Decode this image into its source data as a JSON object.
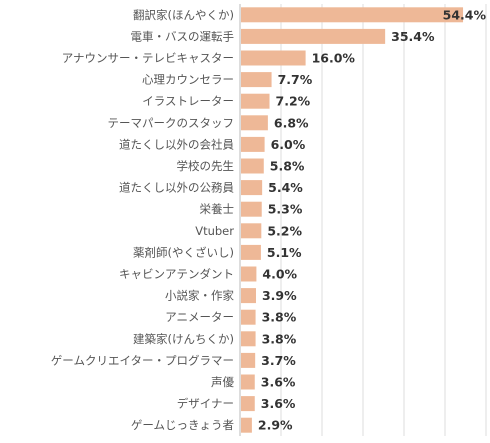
{
  "chart_data": {
    "type": "bar",
    "orientation": "horizontal",
    "categories": [
      "翻訳家(ほんやくか)",
      "電車・バスの運転手",
      "アナウンサー・テレビキャスター",
      "心理カウンセラー",
      "イラストレーター",
      "テーマパークのスタッフ",
      "道たくし以外の会社員",
      "学校の先生",
      "道たくし以外の公務員",
      "栄養士",
      "Vtuber",
      "薬剤師(やくざいし)",
      "キャビンアテンダント",
      "小説家・作家",
      "アニメーター",
      "建築家(けんちくか)",
      "ゲームクリエイター・プログラマー",
      "声優",
      "デザイナー",
      "ゲームじっきょう者"
    ],
    "values": [
      54.4,
      35.4,
      16.0,
      7.7,
      7.2,
      6.8,
      6.0,
      5.8,
      5.4,
      5.3,
      5.2,
      5.1,
      4.0,
      3.9,
      3.8,
      3.8,
      3.7,
      3.6,
      3.6,
      2.9
    ],
    "value_labels": [
      "54.4%",
      "35.4%",
      "16.0%",
      "7.7%",
      "7.2%",
      "6.8%",
      "6.0%",
      "5.8%",
      "5.4%",
      "5.3%",
      "5.2%",
      "5.1%",
      "4.0%",
      "3.9%",
      "3.8%",
      "3.8%",
      "3.7%",
      "3.6%",
      "3.6%",
      "2.9%"
    ],
    "xlim": [
      0,
      60
    ],
    "grid": true,
    "legend": "none",
    "bar_color": "#eeb897"
  }
}
